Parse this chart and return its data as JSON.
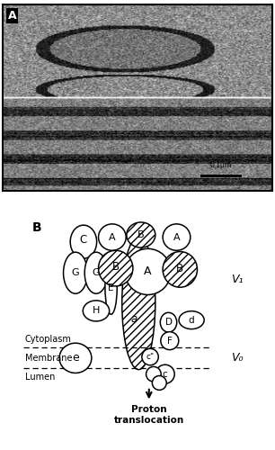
{
  "panel_a_label": "A",
  "panel_b_label": "B",
  "v1_label": "V₁",
  "v0_label": "V₀",
  "cytoplasm_label": "Cytoplasm",
  "membrane_label": "Membrane",
  "lumen_label": "Lumen",
  "proton_label": "Proton\ntranslocation",
  "bg_color": "#ffffff",
  "hatch_pattern": "////",
  "scale_bar_text": "0.1μm"
}
